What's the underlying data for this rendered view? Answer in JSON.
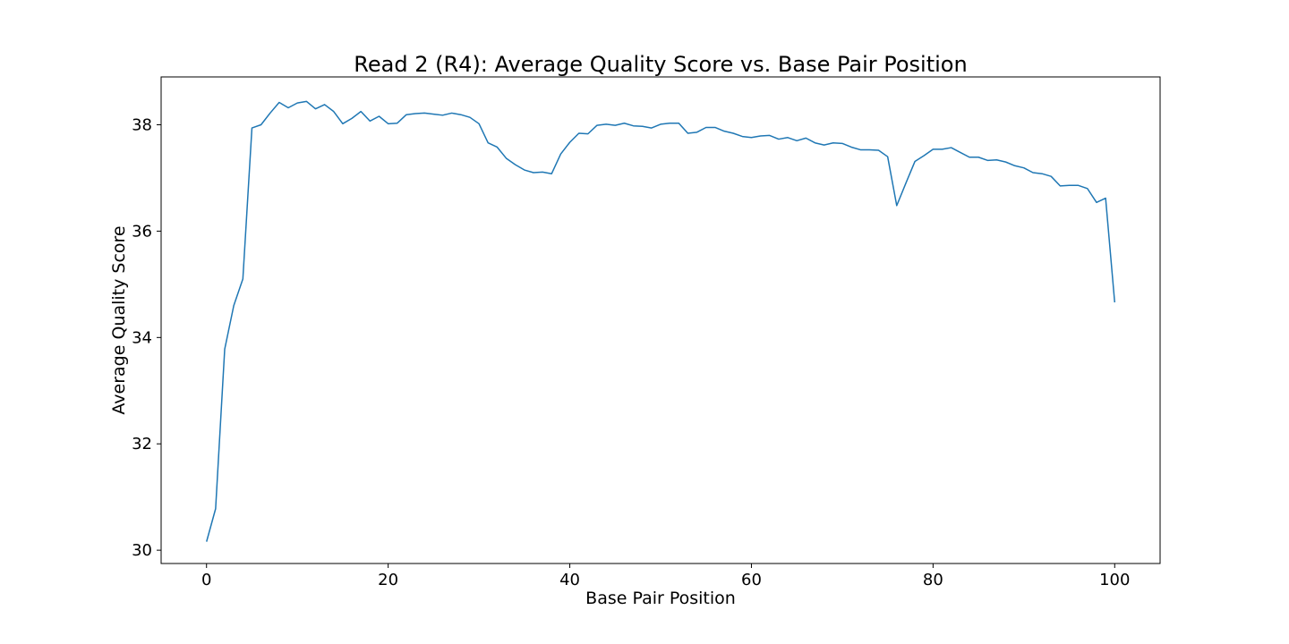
{
  "chart_data": {
    "type": "line",
    "title": "Read 2 (R4): Average Quality Score vs. Base Pair Position",
    "xlabel": "Base Pair Position",
    "ylabel": "Average Quality Score",
    "xlim": [
      -5,
      105
    ],
    "ylim": [
      29.75,
      38.9
    ],
    "xticks": [
      0,
      20,
      40,
      60,
      80,
      100
    ],
    "yticks": [
      30,
      32,
      34,
      36,
      38
    ],
    "grid": false,
    "series": [
      {
        "color": "#1f77b4",
        "x": [
          0,
          1,
          2,
          3,
          4,
          5,
          6,
          7,
          8,
          9,
          10,
          11,
          12,
          13,
          14,
          15,
          16,
          17,
          18,
          19,
          20,
          21,
          22,
          23,
          24,
          25,
          26,
          27,
          28,
          29,
          30,
          31,
          32,
          33,
          34,
          35,
          36,
          37,
          38,
          39,
          40,
          41,
          42,
          43,
          44,
          45,
          46,
          47,
          48,
          49,
          50,
          51,
          52,
          53,
          54,
          55,
          56,
          57,
          58,
          59,
          60,
          61,
          62,
          63,
          64,
          65,
          66,
          67,
          68,
          69,
          70,
          71,
          72,
          73,
          74,
          75,
          76,
          77,
          78,
          79,
          80,
          81,
          82,
          83,
          84,
          85,
          86,
          87,
          88,
          89,
          90,
          91,
          92,
          93,
          94,
          95,
          96,
          97,
          98,
          99,
          100
        ],
        "y": [
          30.16,
          30.78,
          33.78,
          34.6,
          35.1,
          37.94,
          38.0,
          38.22,
          38.42,
          38.32,
          38.41,
          38.44,
          38.3,
          38.38,
          38.25,
          38.02,
          38.12,
          38.25,
          38.07,
          38.16,
          38.02,
          38.03,
          38.19,
          38.21,
          38.22,
          38.2,
          38.18,
          38.22,
          38.19,
          38.14,
          38.02,
          37.66,
          37.58,
          37.37,
          37.25,
          37.15,
          37.1,
          37.11,
          37.08,
          37.45,
          37.67,
          37.84,
          37.83,
          37.99,
          38.01,
          37.99,
          38.03,
          37.98,
          37.97,
          37.94,
          38.01,
          38.03,
          38.03,
          37.84,
          37.86,
          37.95,
          37.95,
          37.88,
          37.84,
          37.78,
          37.76,
          37.79,
          37.8,
          37.73,
          37.76,
          37.7,
          37.75,
          37.66,
          37.62,
          37.66,
          37.65,
          37.58,
          37.53,
          37.53,
          37.52,
          37.4,
          36.48,
          36.9,
          37.31,
          37.42,
          37.54,
          37.54,
          37.57,
          37.48,
          37.39,
          37.39,
          37.33,
          37.34,
          37.3,
          37.23,
          37.19,
          37.1,
          37.08,
          37.03,
          36.85,
          36.86,
          36.86,
          36.8,
          36.54,
          36.62,
          34.66
        ]
      }
    ]
  }
}
